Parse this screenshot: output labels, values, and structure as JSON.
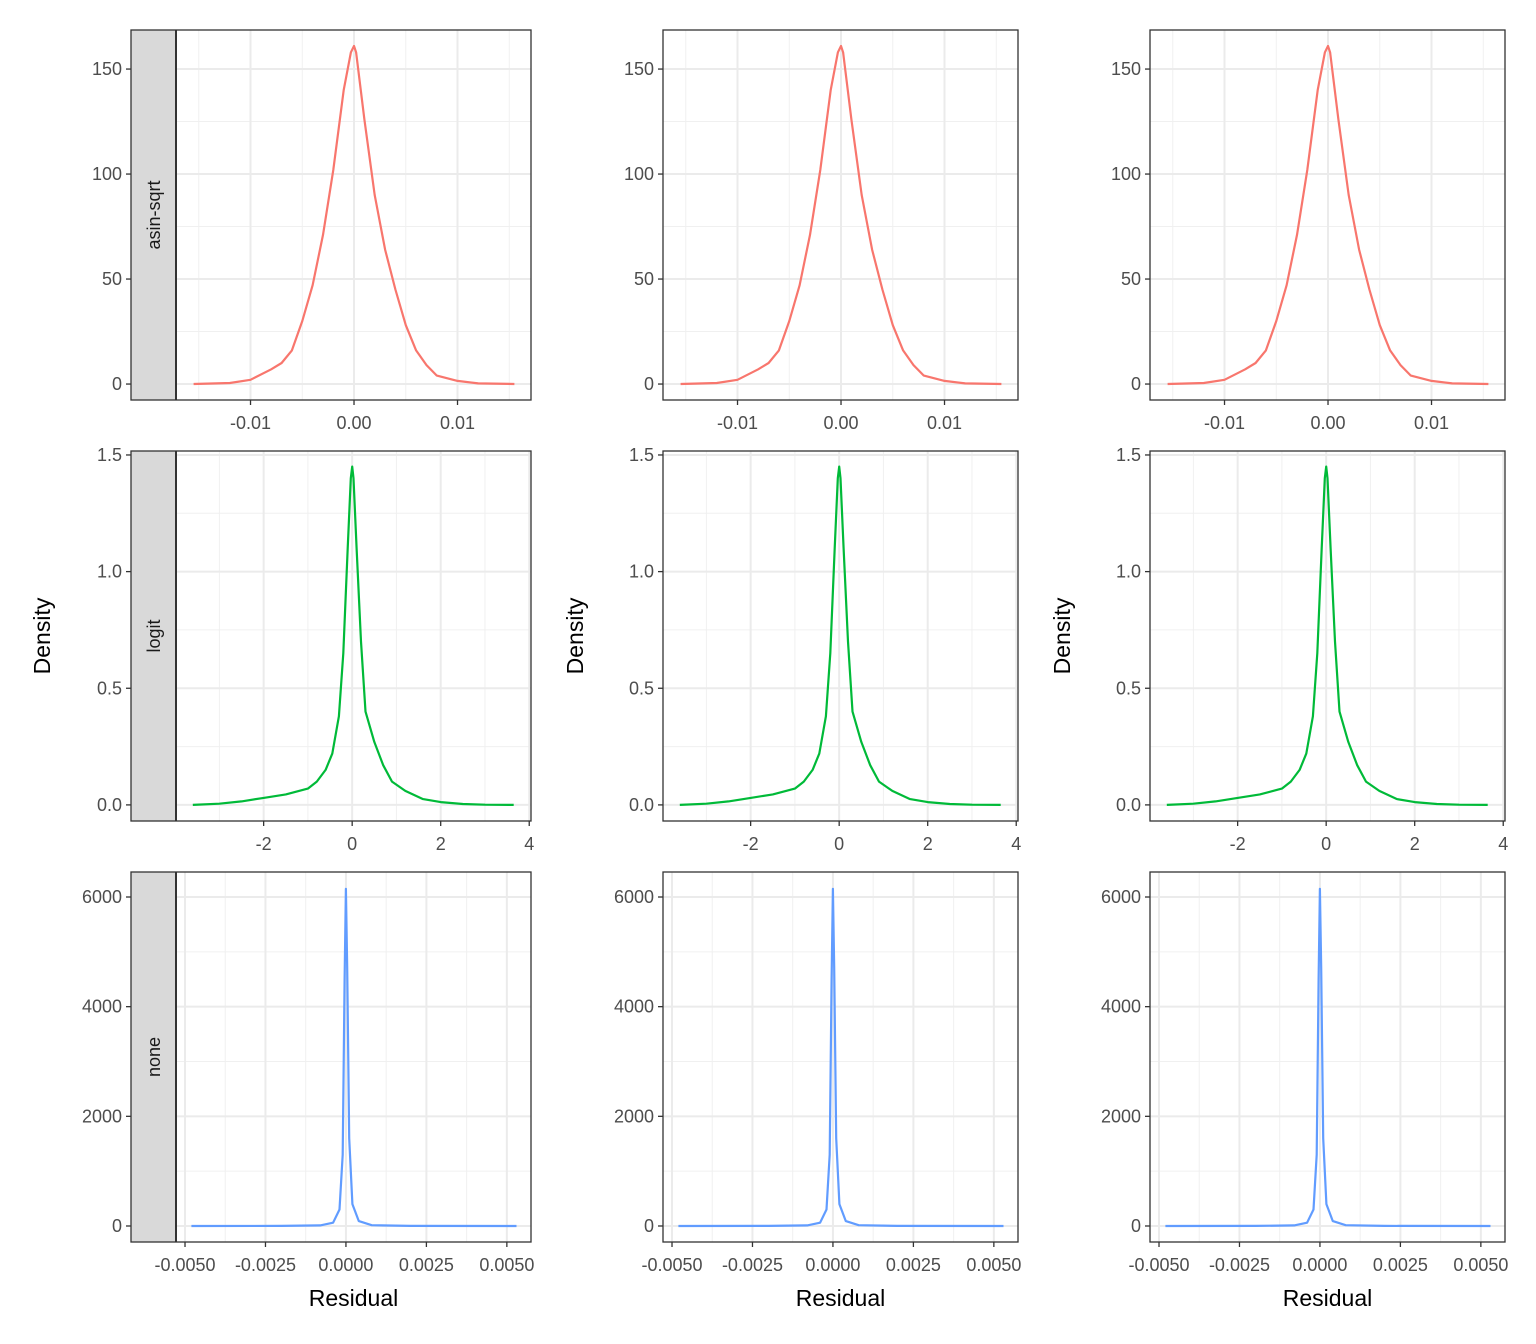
{
  "chart_data": {
    "type": "line",
    "title": "",
    "xlabel": "Residual",
    "ylabel": "Density",
    "grid": true,
    "columns": 3,
    "rows": [
      {
        "strip": "asin-sqrt",
        "color": "#F8766D",
        "xlim": [
          -0.0172,
          0.0171
        ],
        "ylim": [
          -7.6,
          168.6
        ],
        "xticks": [
          -0.01,
          0,
          0.01
        ],
        "xtick_labels": [
          "-0.01",
          "0.00",
          "0.01"
        ],
        "xminor": [
          -0.015,
          -0.005,
          0.005,
          0.015
        ],
        "yticks": [
          0,
          50,
          100,
          150
        ],
        "ytick_labels": [
          "0",
          "50",
          "100",
          "150"
        ],
        "yminor": [
          25,
          75,
          125
        ],
        "x": [
          -0.0155,
          -0.012,
          -0.01,
          -0.008,
          -0.007,
          -0.006,
          -0.005,
          -0.004,
          -0.003,
          -0.002,
          -0.001,
          -0.0003,
          0,
          0.0002,
          0.001,
          0.002,
          0.003,
          0.004,
          0.005,
          0.006,
          0.007,
          0.008,
          0.01,
          0.012,
          0.0155
        ],
        "y": [
          0,
          0.5,
          2,
          7,
          10,
          16,
          30,
          47,
          71,
          102,
          140,
          158,
          161,
          158,
          126,
          90,
          64,
          45,
          28,
          16,
          9,
          4,
          1.5,
          0.3,
          0
        ]
      },
      {
        "strip": "logit",
        "color": "#00BA38",
        "xlim": [
          -3.98,
          4.04
        ],
        "ylim": [
          -0.069,
          1.517
        ],
        "xticks": [
          -2,
          0,
          2,
          4
        ],
        "xtick_labels": [
          "-2",
          "0",
          "2",
          "4"
        ],
        "xminor": [
          -3,
          -1,
          1,
          3
        ],
        "yticks": [
          0,
          0.5,
          1,
          1.5
        ],
        "ytick_labels": [
          "0.0",
          "0.5",
          "1.0",
          "1.5"
        ],
        "yminor": [
          0.25,
          0.75,
          1.25
        ],
        "x": [
          -3.6,
          -3,
          -2.5,
          -2,
          -1.5,
          -1,
          -0.8,
          -0.6,
          -0.45,
          -0.3,
          -0.2,
          -0.1,
          -0.03,
          0,
          0.03,
          0.1,
          0.2,
          0.3,
          0.5,
          0.7,
          0.9,
          1.2,
          1.6,
          2,
          2.5,
          3,
          3.65
        ],
        "y": [
          0,
          0.005,
          0.015,
          0.03,
          0.045,
          0.07,
          0.1,
          0.15,
          0.22,
          0.38,
          0.65,
          1.1,
          1.4,
          1.45,
          1.4,
          1.1,
          0.7,
          0.4,
          0.27,
          0.17,
          0.1,
          0.06,
          0.025,
          0.012,
          0.004,
          0.001,
          0
        ]
      },
      {
        "strip": "none",
        "color": "#619CFF",
        "xlim": [
          -0.00528,
          0.00575
        ],
        "ylim": [
          -292,
          6456
        ],
        "xticks": [
          -0.005,
          -0.0025,
          0,
          0.0025,
          0.005
        ],
        "xtick_labels": [
          "-0.0050",
          "-0.0025",
          "0.0000",
          "0.0025",
          "0.0050"
        ],
        "xminor": [
          -0.00375,
          -0.00125,
          0.00125,
          0.00375
        ],
        "yticks": [
          0,
          2000,
          4000,
          6000
        ],
        "ytick_labels": [
          "0",
          "2000",
          "4000",
          "6000"
        ],
        "yminor": [
          1000,
          3000,
          5000
        ],
        "x": [
          -0.0048,
          -0.002,
          -0.0008,
          -0.0004,
          -0.0002,
          -0.0001,
          -4e-05,
          0,
          4e-05,
          0.0001,
          0.0002,
          0.0004,
          0.0008,
          0.002,
          0.0053
        ],
        "y": [
          0,
          1,
          10,
          60,
          300,
          1300,
          4500,
          6150,
          4700,
          1600,
          400,
          90,
          15,
          2,
          0
        ]
      }
    ]
  }
}
